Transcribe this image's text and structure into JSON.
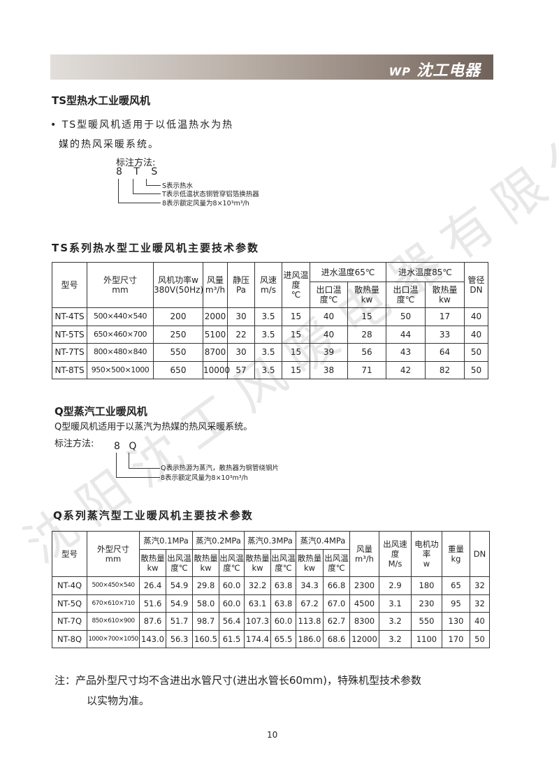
{
  "brand": {
    "logo_mark": "WP",
    "name": "沈工电器"
  },
  "watermark": "沈阳沈工风暖电器有限公司",
  "ts": {
    "title": "TS型热水工业暖风机",
    "desc1": "• TS型暖风机适用于以低温热水为热",
    "desc2": "媒的热风采暖系统。",
    "notation_label": "标注方法:",
    "code": "8 T S",
    "legend": [
      "S表示热水",
      "T表示低温状态铜管穿铝箔换热器",
      "8表示额定风量为8×10³m³/h"
    ],
    "table_title": "TS系列热水型工业暖风机主要技术参数",
    "headers": {
      "model": "型号",
      "dim": "外型尺寸",
      "dim_unit": "mm",
      "power": "风机功率w",
      "power_unit": "380V(50Hz)",
      "flow": "风量",
      "flow_unit": "m³/h",
      "pressure": "静压",
      "pressure_unit": "Pa",
      "speed": "风速",
      "speed_unit": "m/s",
      "inlet": "进风温度",
      "inlet_unit": "℃",
      "w65": "进水温度65℃",
      "w85": "进水温度85℃",
      "out_temp": "出口温度℃",
      "heat": "散热量",
      "heat_unit": "kw",
      "pipe": "管径",
      "pipe_unit": "DN"
    },
    "rows": [
      [
        "NT-4TS",
        "500×440×540",
        "200",
        "2000",
        "30",
        "3.5",
        "15",
        "40",
        "15",
        "50",
        "17",
        "40"
      ],
      [
        "NT-5TS",
        "650×460×700",
        "250",
        "5100",
        "22",
        "3.5",
        "15",
        "40",
        "28",
        "44",
        "33",
        "40"
      ],
      [
        "NT-7TS",
        "800×480×840",
        "550",
        "8700",
        "30",
        "3.5",
        "15",
        "39",
        "56",
        "43",
        "64",
        "50"
      ],
      [
        "NT-8TS",
        "950×500×1000",
        "650",
        "10000",
        "57",
        "3.5",
        "15",
        "38",
        "71",
        "42",
        "82",
        "50"
      ]
    ]
  },
  "q": {
    "title": "Q型蒸汽工业暖风机",
    "desc": "Q型暖风机适用于以蒸汽为热媒的热风采暖系统。",
    "notation_label": "标注方法:",
    "code": "8 Q",
    "legend": [
      "Q表示热源为蒸汽，散热器为钢管绕钢片",
      "8表示额定风量为8×10³m³/h"
    ],
    "table_title": "Q系列蒸汽型工业暖风机主要技术参数",
    "headers": {
      "model": "型号",
      "dim": "外型尺寸",
      "dim_unit": "mm",
      "steam": [
        "蒸汽0.1MPa",
        "蒸汽0.2MPa",
        "蒸汽0.3MPa",
        "蒸汽0.4MPa"
      ],
      "heat": "散热量",
      "heat_unit": "kw",
      "out_temp": "出风温度℃",
      "flow": "风量",
      "flow_unit": "m³/h",
      "speed": "出风速度",
      "speed_unit": "M/s",
      "motor": "电机功率",
      "motor_unit": "w",
      "weight": "重量",
      "weight_unit": "kg",
      "dn": "DN"
    },
    "rows": [
      [
        "NT-4Q",
        "500×450×540",
        "26.4",
        "54.9",
        "29.8",
        "60.0",
        "32.2",
        "63.8",
        "34.3",
        "66.8",
        "2300",
        "2.9",
        "180",
        "65",
        "32"
      ],
      [
        "NT-5Q",
        "670×610×710",
        "51.6",
        "54.9",
        "58.0",
        "60.0",
        "63.1",
        "63.8",
        "67.2",
        "67.0",
        "4500",
        "3.1",
        "230",
        "95",
        "32"
      ],
      [
        "NT-7Q",
        "850×610×900",
        "87.6",
        "51.7",
        "98.7",
        "56.4",
        "107.3",
        "60.0",
        "113.8",
        "62.7",
        "8300",
        "3.2",
        "550",
        "130",
        "40"
      ],
      [
        "NT-8Q",
        "1000×700×1050",
        "143.0",
        "56.3",
        "160.5",
        "61.5",
        "174.4",
        "65.5",
        "186.0",
        "68.6",
        "12000",
        "3.2",
        "1100",
        "170",
        "50"
      ]
    ]
  },
  "note1": "注：产品外型尺寸均不含进出水管尺寸(进出水管长60mm)，特殊机型技术参数",
  "note2": "以实物为准。",
  "page_number": "10"
}
